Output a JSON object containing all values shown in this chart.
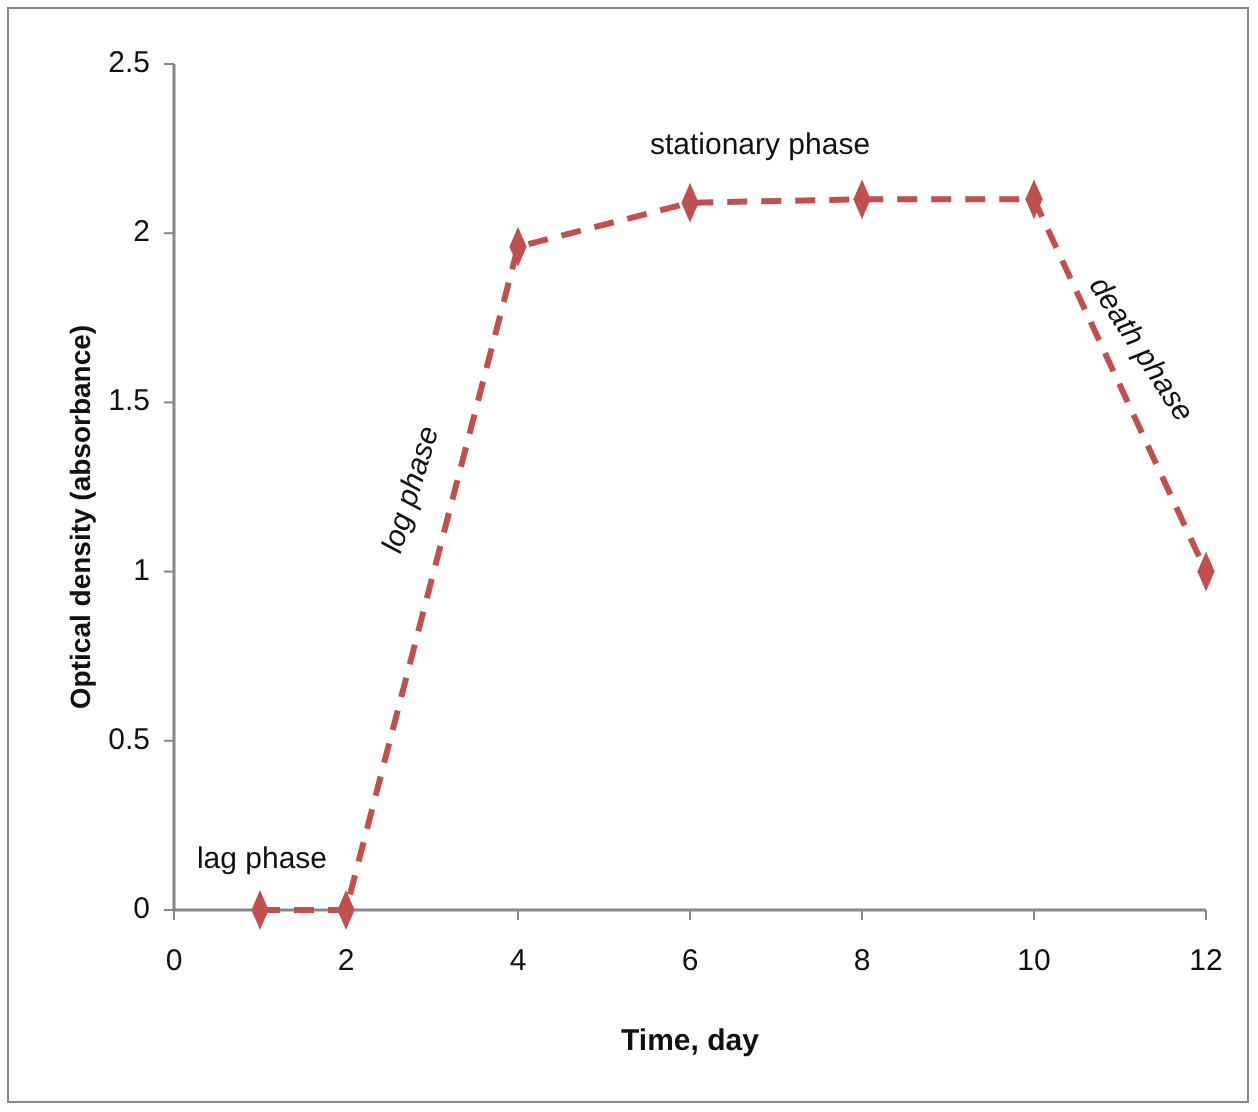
{
  "chart_data": {
    "type": "line",
    "xlabel": "Time, day",
    "ylabel": "Optical density (absorbance)",
    "x": [
      1,
      2,
      4,
      6,
      8,
      10,
      12
    ],
    "series": [
      {
        "color": "#c0504d",
        "values": [
          0,
          0,
          1.96,
          2.09,
          2.1,
          2.1,
          1.0
        ]
      }
    ],
    "xlim": [
      0,
      12
    ],
    "xticks": [
      0,
      2,
      4,
      6,
      8,
      10,
      12
    ],
    "ylim": [
      0,
      2.5
    ],
    "yticks": [
      0,
      0.5,
      1,
      1.5,
      2,
      2.5
    ],
    "grid": false,
    "marker": "diamond",
    "line_style": "dashed",
    "annotations": [
      "lag phase",
      "log phase",
      "stationary phase",
      "death phase"
    ]
  }
}
